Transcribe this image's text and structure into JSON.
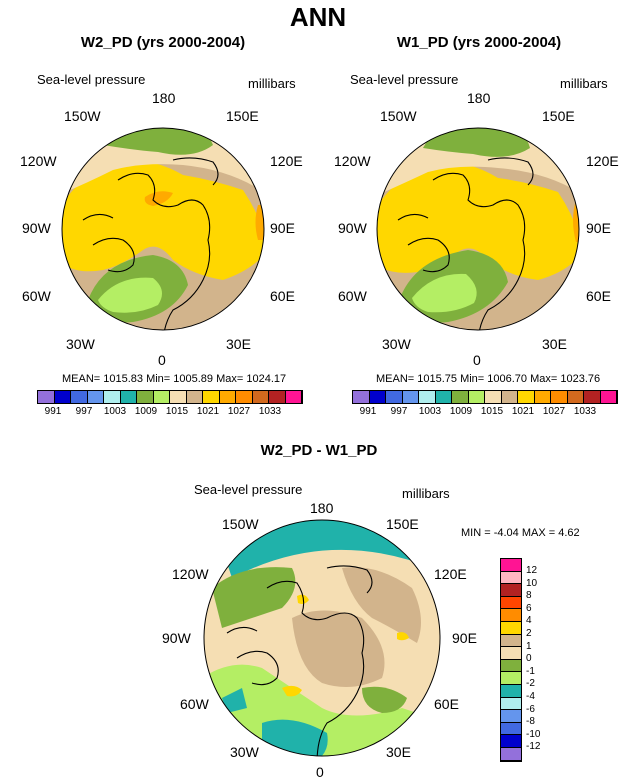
{
  "title": "ANN",
  "panels": [
    {
      "title": "W2_PD (yrs 2000-2004)",
      "left_label": "Sea-level pressure",
      "right_label": "millibars",
      "stats": "MEAN= 1015.83  Min= 1005.89  Max= 1024.17",
      "stat_values": {
        "mean": 1015.83,
        "min": 1005.89,
        "max": 1024.17
      }
    },
    {
      "title": "W1_PD (yrs 2000-2004)",
      "left_label": "Sea-level pressure",
      "right_label": "millibars",
      "stats": "MEAN= 1015.75  Min= 1006.70  Max= 1023.76",
      "stat_values": {
        "mean": 1015.75,
        "min": 1006.7,
        "max": 1023.76
      }
    },
    {
      "title": "W2_PD - W1_PD",
      "left_label": "Sea-level pressure",
      "right_label": "millibars",
      "stats": "MIN =  -4.04 MAX =  4.62",
      "stat_values": {
        "min": -4.04,
        "max": 4.62
      }
    }
  ],
  "longitude_labels": {
    "top": "180",
    "top_right": "150E",
    "right_upper": "120E",
    "right": "90E",
    "right_lower": "60E",
    "bottom_right": "30E",
    "bottom": "0",
    "bottom_left": "30W",
    "left_lower": "60W",
    "left": "90W",
    "left_upper": "120W",
    "top_left": "150W"
  },
  "colorbar_abs": {
    "labels": [
      "991",
      "997",
      "1003",
      "1009",
      "1015",
      "1021",
      "1027",
      "1033"
    ],
    "colors": [
      "#9370DB",
      "#0000CD",
      "#4169E1",
      "#6495ED",
      "#AFEEEE",
      "#20B2AA",
      "#7FB03D",
      "#B4EE64",
      "#F5DEB3",
      "#D2B48C",
      "#FFD700",
      "#FFAA00",
      "#FF8C00",
      "#D2691E",
      "#B22222",
      "#FF1493"
    ]
  },
  "colorbar_diff": {
    "labels": [
      "12",
      "10",
      "8",
      "6",
      "4",
      "2",
      "1",
      "0",
      "-1",
      "-2",
      "-4",
      "-6",
      "-8",
      "-10",
      "-12"
    ],
    "colors": [
      "#FF1493",
      "#FFB6C1",
      "#B22222",
      "#FF4500",
      "#FF8C00",
      "#FFD700",
      "#D2B48C",
      "#F5DEB3",
      "#7FB03D",
      "#B4EE64",
      "#20B2AA",
      "#AFEEEE",
      "#6495ED",
      "#4169E1",
      "#0000CD",
      "#9370DB"
    ]
  },
  "palette": {
    "tan": "#D2B48C",
    "wheat": "#F5DEB3",
    "yellow": "#FFD700",
    "orange": "#FFAA00",
    "green": "#7FB03D",
    "lightgreen": "#B4EE64",
    "teal": "#20B2AA",
    "cyan": "#48D1CC",
    "coast": "#000000"
  }
}
